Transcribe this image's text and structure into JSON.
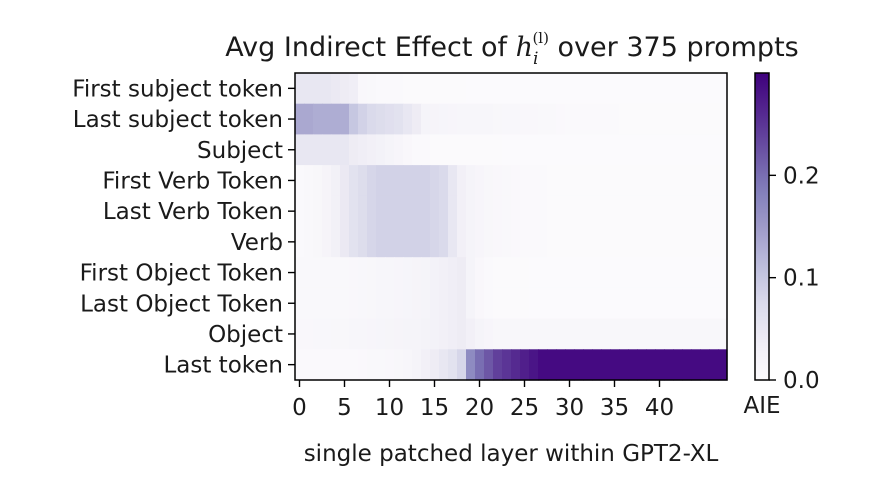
{
  "chart_data": {
    "type": "heatmap",
    "title_prefix": "Avg Indirect Effect of ",
    "title_var": "h",
    "title_sub": "i",
    "title_sup": "(l)",
    "title_suffix": " over 375 prompts",
    "xlabel": "single patched layer within GPT2-XL",
    "ylabel": "",
    "colorbar_label": "AIE",
    "x_ticks": [
      0,
      5,
      10,
      15,
      20,
      25,
      30,
      35,
      40
    ],
    "colorbar_ticks": [
      0.0,
      0.1,
      0.2
    ],
    "colorbar_tick_labels": [
      "0.0",
      "0.1",
      "0.2"
    ],
    "colormap": "Purples",
    "color_low": "#fcfbfd",
    "color_high": "#3f007d",
    "zlim": [
      0.0,
      0.3
    ],
    "n_layers": 48,
    "rows": [
      "First subject token",
      "Last subject token",
      "Subject",
      "First Verb Token",
      "Last Verb Token",
      "Verb",
      "First Object Token",
      "Last Object Token",
      "Object",
      "Last token"
    ],
    "values": [
      [
        0.05,
        0.05,
        0.05,
        0.05,
        0.045,
        0.04,
        0.035,
        0.01,
        0.008,
        0.006,
        0.005,
        0.005,
        0.004,
        0.004,
        0.004,
        0.003,
        0.003,
        0.003,
        0.003,
        0.002,
        0.002,
        0.002,
        0.002,
        0.002,
        0.002,
        0.002,
        0.002,
        0.002,
        0.002,
        0.002,
        0.002,
        0.002,
        0.002,
        0.002,
        0.002,
        0.002,
        0.002,
        0.002,
        0.002,
        0.002,
        0.002,
        0.002,
        0.002,
        0.002,
        0.002,
        0.002,
        0.002,
        0.002
      ],
      [
        0.135,
        0.135,
        0.13,
        0.13,
        0.13,
        0.13,
        0.1,
        0.085,
        0.075,
        0.07,
        0.065,
        0.06,
        0.05,
        0.04,
        0.02,
        0.018,
        0.016,
        0.015,
        0.014,
        0.014,
        0.014,
        0.013,
        0.012,
        0.011,
        0.011,
        0.01,
        0.01,
        0.009,
        0.008,
        0.007,
        0.006,
        0.006,
        0.005,
        0.005,
        0.005,
        0.005,
        0.004,
        0.004,
        0.004,
        0.004,
        0.004,
        0.004,
        0.004,
        0.004,
        0.004,
        0.004,
        0.004,
        0.004
      ],
      [
        0.05,
        0.05,
        0.05,
        0.05,
        0.05,
        0.05,
        0.04,
        0.035,
        0.03,
        0.025,
        0.02,
        0.015,
        0.01,
        0.006,
        0.005,
        0.004,
        0.003,
        0.003,
        0.003,
        0.003,
        0.003,
        0.003,
        0.003,
        0.002,
        0.002,
        0.002,
        0.002,
        0.002,
        0.002,
        0.002,
        0.002,
        0.002,
        0.002,
        0.002,
        0.002,
        0.002,
        0.002,
        0.002,
        0.002,
        0.002,
        0.002,
        0.002,
        0.002,
        0.002,
        0.002,
        0.002,
        0.002,
        0.002
      ],
      [
        0.005,
        0.008,
        0.012,
        0.018,
        0.028,
        0.045,
        0.06,
        0.07,
        0.08,
        0.085,
        0.085,
        0.085,
        0.085,
        0.085,
        0.085,
        0.08,
        0.075,
        0.05,
        0.03,
        0.02,
        0.015,
        0.012,
        0.01,
        0.008,
        0.007,
        0.006,
        0.005,
        0.005,
        0.004,
        0.004,
        0.004,
        0.003,
        0.003,
        0.003,
        0.003,
        0.003,
        0.003,
        0.003,
        0.003,
        0.003,
        0.003,
        0.003,
        0.003,
        0.003,
        0.003,
        0.003,
        0.003,
        0.003
      ],
      [
        0.005,
        0.008,
        0.012,
        0.018,
        0.028,
        0.045,
        0.06,
        0.07,
        0.08,
        0.085,
        0.085,
        0.085,
        0.085,
        0.085,
        0.085,
        0.08,
        0.075,
        0.05,
        0.03,
        0.02,
        0.015,
        0.012,
        0.01,
        0.008,
        0.007,
        0.006,
        0.005,
        0.005,
        0.004,
        0.004,
        0.004,
        0.003,
        0.003,
        0.003,
        0.003,
        0.003,
        0.003,
        0.003,
        0.003,
        0.003,
        0.003,
        0.003,
        0.003,
        0.003,
        0.003,
        0.003,
        0.003,
        0.003
      ],
      [
        0.005,
        0.008,
        0.012,
        0.018,
        0.028,
        0.045,
        0.06,
        0.07,
        0.08,
        0.085,
        0.085,
        0.085,
        0.085,
        0.085,
        0.085,
        0.08,
        0.075,
        0.05,
        0.03,
        0.02,
        0.015,
        0.012,
        0.01,
        0.008,
        0.007,
        0.006,
        0.005,
        0.005,
        0.004,
        0.004,
        0.004,
        0.003,
        0.003,
        0.003,
        0.003,
        0.003,
        0.003,
        0.003,
        0.003,
        0.003,
        0.003,
        0.003,
        0.003,
        0.003,
        0.003,
        0.003,
        0.003,
        0.003
      ],
      [
        0.008,
        0.008,
        0.008,
        0.008,
        0.009,
        0.009,
        0.01,
        0.011,
        0.012,
        0.013,
        0.014,
        0.015,
        0.016,
        0.018,
        0.02,
        0.025,
        0.03,
        0.035,
        0.04,
        0.02,
        0.01,
        0.006,
        0.004,
        0.003,
        0.003,
        0.003,
        0.002,
        0.002,
        0.002,
        0.002,
        0.002,
        0.002,
        0.002,
        0.002,
        0.002,
        0.002,
        0.002,
        0.002,
        0.002,
        0.002,
        0.002,
        0.002,
        0.002,
        0.002,
        0.002,
        0.002,
        0.002,
        0.002
      ],
      [
        0.008,
        0.008,
        0.008,
        0.008,
        0.009,
        0.009,
        0.01,
        0.011,
        0.012,
        0.013,
        0.014,
        0.015,
        0.016,
        0.018,
        0.02,
        0.025,
        0.03,
        0.035,
        0.04,
        0.02,
        0.01,
        0.006,
        0.004,
        0.003,
        0.003,
        0.003,
        0.002,
        0.002,
        0.002,
        0.002,
        0.002,
        0.002,
        0.002,
        0.002,
        0.002,
        0.002,
        0.002,
        0.002,
        0.002,
        0.002,
        0.002,
        0.002,
        0.002,
        0.002,
        0.002,
        0.002,
        0.002,
        0.002
      ],
      [
        0.01,
        0.01,
        0.011,
        0.011,
        0.012,
        0.012,
        0.013,
        0.014,
        0.015,
        0.016,
        0.017,
        0.018,
        0.019,
        0.02,
        0.022,
        0.025,
        0.03,
        0.035,
        0.04,
        0.03,
        0.02,
        0.015,
        0.012,
        0.012,
        0.012,
        0.012,
        0.012,
        0.012,
        0.012,
        0.012,
        0.012,
        0.012,
        0.012,
        0.012,
        0.012,
        0.012,
        0.012,
        0.012,
        0.012,
        0.012,
        0.012,
        0.012,
        0.012,
        0.012,
        0.012,
        0.012,
        0.012,
        0.012
      ],
      [
        0.005,
        0.005,
        0.005,
        0.005,
        0.005,
        0.006,
        0.006,
        0.007,
        0.008,
        0.009,
        0.01,
        0.012,
        0.014,
        0.02,
        0.03,
        0.04,
        0.05,
        0.06,
        0.08,
        0.17,
        0.2,
        0.22,
        0.24,
        0.25,
        0.26,
        0.27,
        0.28,
        0.29,
        0.29,
        0.29,
        0.29,
        0.29,
        0.29,
        0.29,
        0.29,
        0.29,
        0.29,
        0.29,
        0.29,
        0.29,
        0.29,
        0.29,
        0.29,
        0.29,
        0.29,
        0.29,
        0.29,
        0.29
      ]
    ]
  }
}
